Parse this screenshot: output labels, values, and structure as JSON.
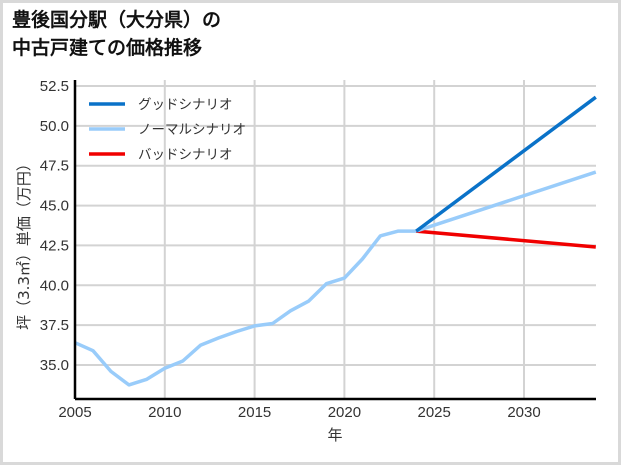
{
  "title": {
    "line1": "豊後国分駅（大分県）の",
    "line2": "中古戸建ての価格推移"
  },
  "colors": {
    "good": "#0a72c8",
    "normal": "#99ccfa",
    "bad": "#f00000",
    "grid": "#d3d3d3",
    "axis": "#000000"
  },
  "chart_data": {
    "type": "line",
    "title": "豊後国分駅（大分県）の中古戸建ての価格推移",
    "xlabel": "年",
    "ylabel": "坪（3.3㎡）単価（万円）",
    "xlim": [
      2005,
      2034
    ],
    "ylim": [
      33,
      52.5
    ],
    "grid": true,
    "legend_position": "upper left",
    "x_ticks": [
      2005,
      2010,
      2015,
      2020,
      2025,
      2030
    ],
    "y_ticks": [
      35.0,
      37.5,
      40.0,
      42.5,
      45.0,
      47.5,
      50.0,
      52.5
    ],
    "x_tick_labels": [
      "2005",
      "2010",
      "2015",
      "2020",
      "2025",
      "2030"
    ],
    "y_tick_labels": [
      "35.0",
      "37.5",
      "40.0",
      "42.5",
      "45.0",
      "47.5",
      "50.0",
      "52.5"
    ],
    "historical": {
      "x": [
        2005,
        2006,
        2007,
        2008,
        2009,
        2010,
        2011,
        2012,
        2013,
        2014,
        2015,
        2016,
        2017,
        2018,
        2019,
        2020,
        2021,
        2022,
        2023,
        2024
      ],
      "y": [
        36.4,
        35.9,
        34.6,
        33.75,
        34.1,
        34.8,
        35.25,
        36.25,
        36.7,
        37.1,
        37.45,
        37.6,
        38.4,
        39.0,
        40.1,
        40.45,
        41.65,
        43.1,
        43.4,
        43.4
      ]
    },
    "series": [
      {
        "name": "グッドシナリオ",
        "key": "good",
        "x": [
          2024,
          2034
        ],
        "y": [
          43.4,
          51.8
        ]
      },
      {
        "name": "ノーマルシナリオ",
        "key": "normal",
        "x": [
          2024,
          2034
        ],
        "y": [
          43.4,
          47.1
        ]
      },
      {
        "name": "バッドシナリオ",
        "key": "bad",
        "x": [
          2024,
          2034
        ],
        "y": [
          43.4,
          42.4
        ]
      }
    ]
  },
  "legend": {
    "good": "グッドシナリオ",
    "normal": "ノーマルシナリオ",
    "bad": "バッドシナリオ"
  },
  "axes": {
    "xlabel": "年",
    "ylabel": "坪（3.3㎡）単価（万円）"
  }
}
